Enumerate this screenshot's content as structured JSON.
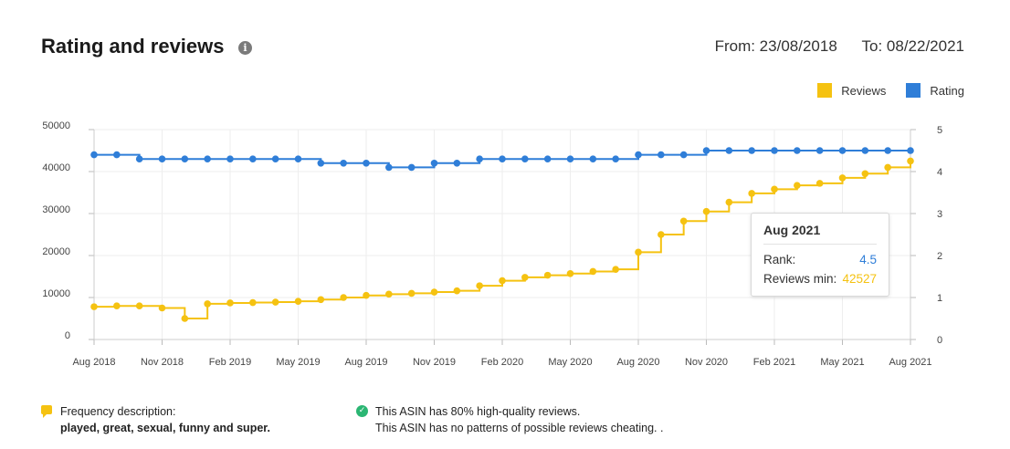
{
  "header": {
    "title": "Rating and reviews",
    "info_icon": "info-icon",
    "from": "From: 23/08/2018",
    "to": "To: 08/22/2021"
  },
  "legend": {
    "reviews_label": "Reviews",
    "rating_label": "Rating"
  },
  "colors": {
    "reviews": "#F5C211",
    "rating": "#2F7ED8",
    "grid": "#EEEEEE",
    "axis_text": "#444444"
  },
  "tooltip": {
    "title": "Aug 2021",
    "rank_label": "Rank:",
    "rank_value": "4.5",
    "reviews_label": "Reviews min:",
    "reviews_value": "42527"
  },
  "footer": {
    "frequency_label": "Frequency description:",
    "frequency_words": "played, great, sexual, funny and super.",
    "quality_line": "This ASIN has 80% high-quality reviews.",
    "cheating_line": "This ASIN has no patterns of possible reviews cheating. ."
  },
  "chart_data": {
    "type": "line",
    "step": true,
    "x_ticks": [
      "Aug 2018",
      "Nov 2018",
      "Feb 2019",
      "May 2019",
      "Aug 2019",
      "Nov 2019",
      "Feb 2020",
      "May 2020",
      "Aug 2020",
      "Nov 2020",
      "Feb 2021",
      "May 2021",
      "Aug 2021"
    ],
    "x": [
      "Aug 2018",
      "Sep 2018",
      "Oct 2018",
      "Nov 2018",
      "Dec 2018",
      "Jan 2019",
      "Feb 2019",
      "Mar 2019",
      "Apr 2019",
      "May 2019",
      "Jun 2019",
      "Jul 2019",
      "Aug 2019",
      "Sep 2019",
      "Oct 2019",
      "Nov 2019",
      "Dec 2019",
      "Jan 2020",
      "Feb 2020",
      "Mar 2020",
      "Apr 2020",
      "May 2020",
      "Jun 2020",
      "Jul 2020",
      "Aug 2020",
      "Sep 2020",
      "Oct 2020",
      "Nov 2020",
      "Dec 2020",
      "Jan 2021",
      "Feb 2021",
      "Mar 2021",
      "Apr 2021",
      "May 2021",
      "Jun 2021",
      "Jul 2021",
      "Aug 2021"
    ],
    "series": [
      {
        "name": "Reviews",
        "axis": "left",
        "values": [
          7800,
          8000,
          8000,
          7500,
          5000,
          8500,
          8700,
          8800,
          8900,
          9100,
          9500,
          10000,
          10500,
          10800,
          11000,
          11300,
          11600,
          12800,
          14000,
          14800,
          15300,
          15700,
          16200,
          16700,
          20800,
          25000,
          28200,
          30500,
          32700,
          34800,
          35800,
          36700,
          37200,
          38500,
          39500,
          41000,
          42527
        ]
      },
      {
        "name": "Rating",
        "axis": "right",
        "values": [
          4.4,
          4.4,
          4.3,
          4.3,
          4.3,
          4.3,
          4.3,
          4.3,
          4.3,
          4.3,
          4.2,
          4.2,
          4.2,
          4.1,
          4.1,
          4.2,
          4.2,
          4.3,
          4.3,
          4.3,
          4.3,
          4.3,
          4.3,
          4.3,
          4.4,
          4.4,
          4.4,
          4.5,
          4.5,
          4.5,
          4.5,
          4.5,
          4.5,
          4.5,
          4.5,
          4.5,
          4.5
        ]
      }
    ],
    "y_left": {
      "ticks": [
        0,
        10000,
        20000,
        30000,
        40000,
        50000
      ],
      "range": [
        0,
        50000
      ]
    },
    "y_right": {
      "ticks": [
        0,
        1,
        2,
        3,
        4,
        5
      ],
      "range": [
        0,
        5
      ]
    },
    "grid": true,
    "legend_position": "top-right"
  }
}
